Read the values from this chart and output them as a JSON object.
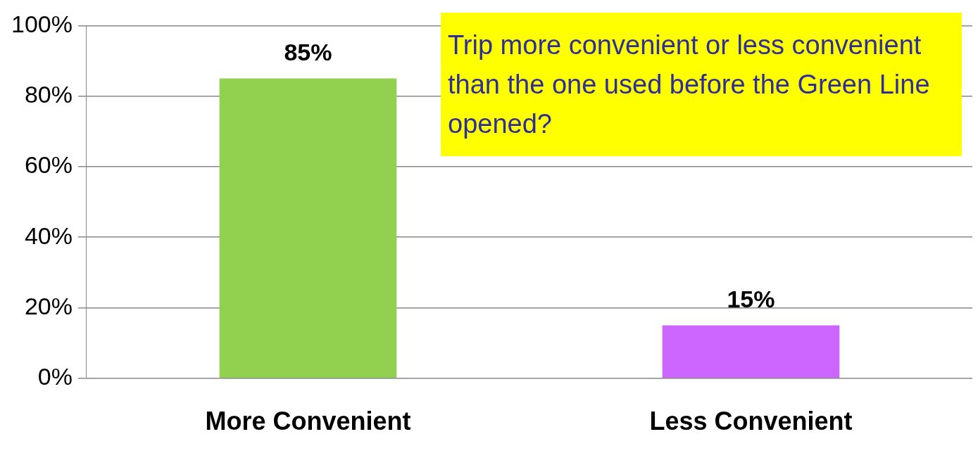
{
  "chart_data": {
    "type": "bar",
    "title": "Trip more convenient or less convenient than the one used before the Green Line opened?",
    "categories": [
      "More Convenient",
      "Less Convenient"
    ],
    "values": [
      85,
      15
    ],
    "colors": [
      "#92d050",
      "#cc66ff"
    ],
    "value_labels": [
      "85%",
      "15%"
    ],
    "ylim": [
      0,
      100
    ],
    "yticks": [
      {
        "value": 0,
        "label": "0%"
      },
      {
        "value": 20,
        "label": "20%"
      },
      {
        "value": 40,
        "label": "40%"
      },
      {
        "value": 60,
        "label": "60%"
      },
      {
        "value": 80,
        "label": "80%"
      },
      {
        "value": 100,
        "label": "100%"
      }
    ],
    "grid": "y",
    "legend": false
  }
}
